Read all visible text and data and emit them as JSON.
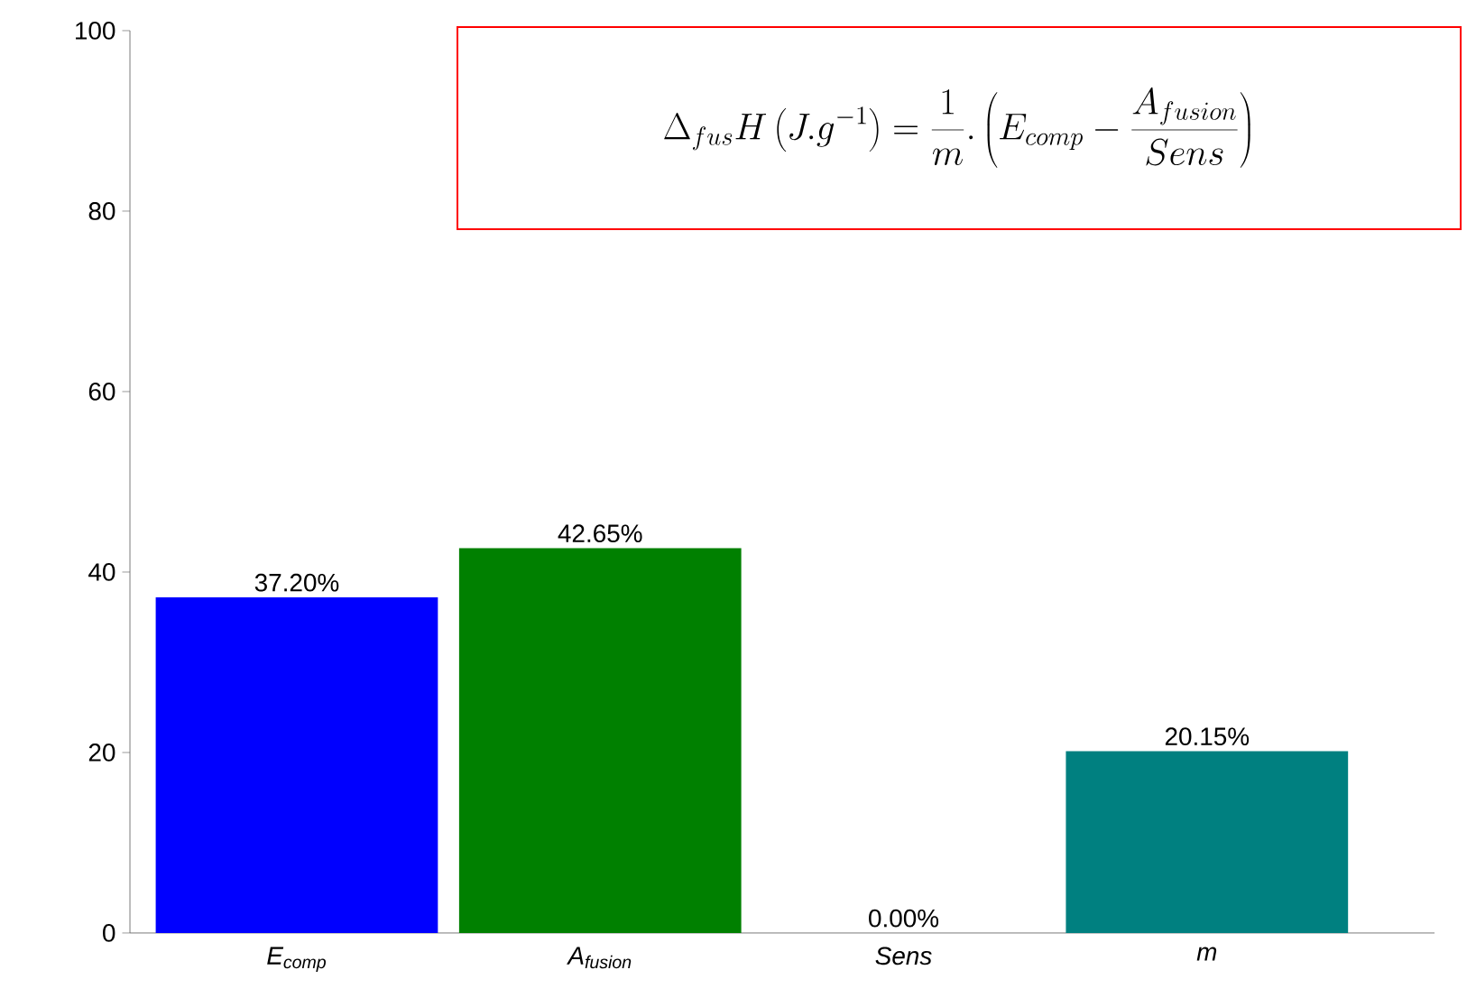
{
  "chart_data": {
    "type": "bar",
    "categories": [
      "E$_{comp}$",
      "A$_{fusion}$",
      "Sens",
      "m"
    ],
    "values": [
      37.2,
      42.65,
      0.0,
      20.15
    ],
    "colors": [
      "#0000ff",
      "#008000",
      null,
      "#008080"
    ],
    "value_labels": [
      "37.20%",
      "42.65%",
      "0.00%",
      "20.15%"
    ],
    "ylim": [
      0,
      100
    ],
    "yticks": [
      0,
      20,
      40,
      60,
      80,
      100
    ],
    "annotations": [
      "\\Delta_{fus}H\\left(J.g^{-1}\\right)=\\frac{1}{m}.\\left(E_{comp}-\\frac{A_{fusion}}{Sens}\\right)"
    ]
  }
}
